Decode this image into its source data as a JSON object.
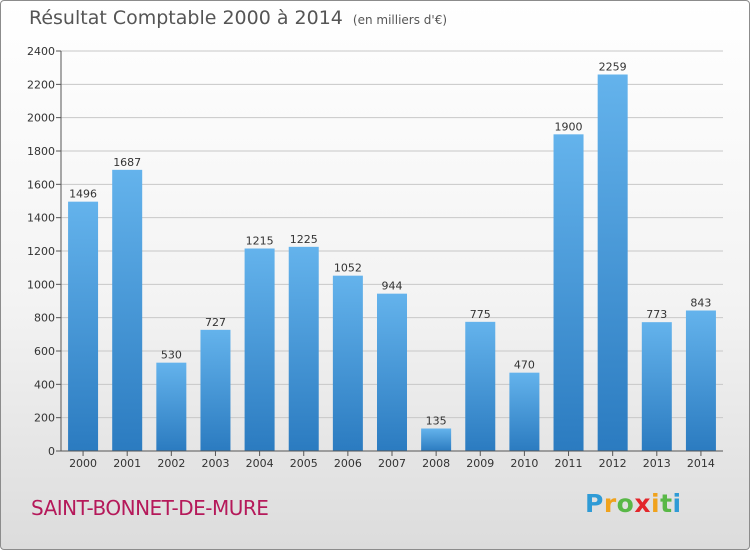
{
  "header": {
    "title": "Résultat Comptable 2000 à 2014",
    "subtitle": "(en milliers d'€)"
  },
  "footer": {
    "city": "SAINT-BONNET-DE-MURE",
    "logo_parts": [
      "P",
      "r",
      "o",
      "x",
      "i",
      "t",
      "i"
    ]
  },
  "colors": {
    "bar_light": "#64b3ec",
    "bar_dark": "#2b7bc0",
    "grid": "#c8c8c8",
    "city": "#b5195a"
  },
  "chart_data": {
    "type": "bar",
    "title": "Résultat Comptable 2000 à 2014",
    "subtitle": "(en milliers d'€)",
    "categories": [
      "2000",
      "2001",
      "2002",
      "2003",
      "2004",
      "2005",
      "2006",
      "2007",
      "2008",
      "2009",
      "2010",
      "2011",
      "2012",
      "2013",
      "2014"
    ],
    "values": [
      1496,
      1687,
      530,
      727,
      1215,
      1225,
      1052,
      944,
      135,
      775,
      470,
      1900,
      2259,
      773,
      843
    ],
    "ylim": [
      0,
      2400
    ],
    "yticks": [
      0,
      200,
      400,
      600,
      800,
      1000,
      1200,
      1400,
      1600,
      1800,
      2000,
      2200,
      2400
    ],
    "grid": true,
    "data_labels": true
  }
}
